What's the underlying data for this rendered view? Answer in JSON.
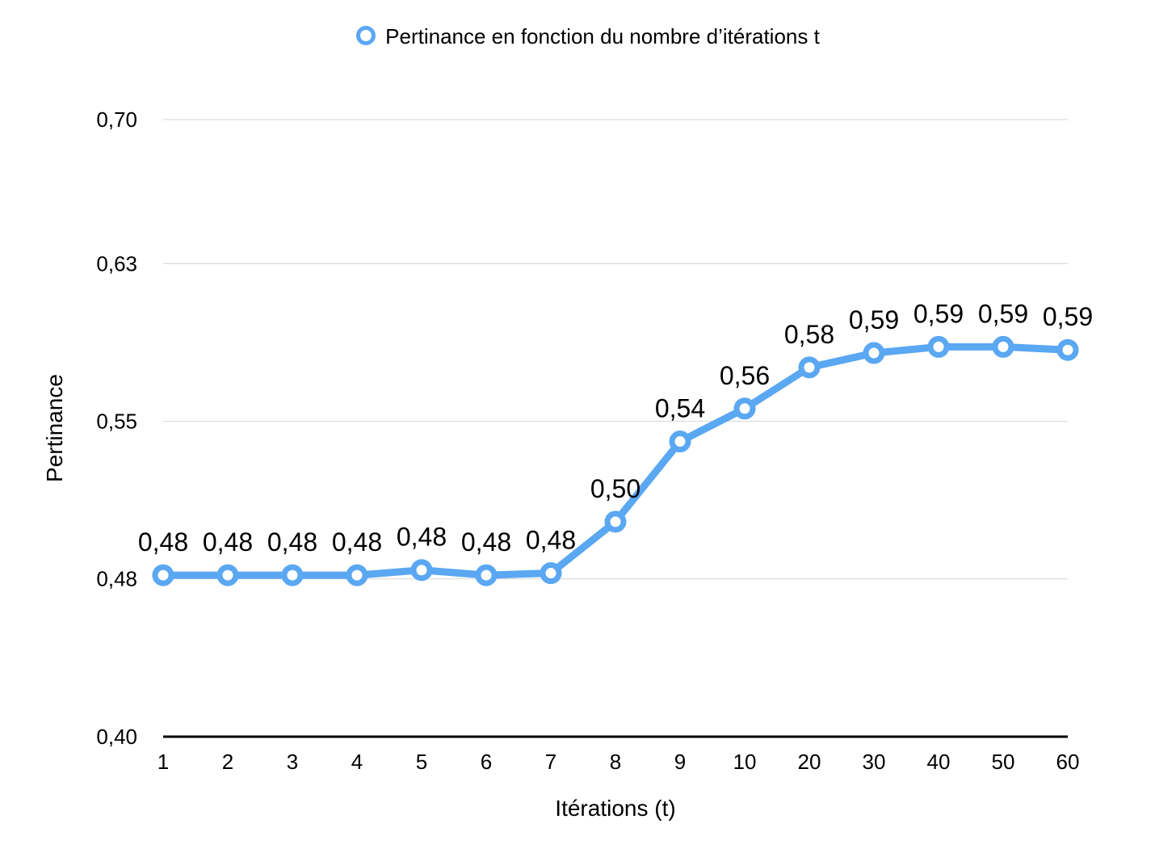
{
  "chart_data": {
    "type": "line",
    "title": "",
    "xlabel": "Itérations (t)",
    "ylabel": "Pertinance",
    "categories": [
      "1",
      "2",
      "3",
      "4",
      "5",
      "6",
      "7",
      "8",
      "9",
      "10",
      "20",
      "30",
      "40",
      "50",
      "60"
    ],
    "series": [
      {
        "name": "Pertinance en fonction du nombre d’itérations t",
        "color": "#5aa7f2",
        "values": [
          0.4785,
          0.4785,
          0.4785,
          0.4785,
          0.481,
          0.4785,
          0.4795,
          0.5045,
          0.5435,
          0.5595,
          0.5795,
          0.5865,
          0.5895,
          0.5895,
          0.588
        ],
        "labels": [
          "0,48",
          "0,48",
          "0,48",
          "0,48",
          "0,48",
          "0,48",
          "0,48",
          "0,50",
          "0,54",
          "0,56",
          "0,58",
          "0,59",
          "0,59",
          "0,59",
          "0,59"
        ]
      }
    ],
    "ylim": [
      0.4,
      0.7
    ],
    "yticks": [
      0.4,
      0.4767,
      0.5533,
      0.63,
      0.7
    ],
    "ytick_labels": [
      "0,40",
      "0,48",
      "0,55",
      "0,63",
      "0,70"
    ],
    "grid": true,
    "legend": "top"
  }
}
